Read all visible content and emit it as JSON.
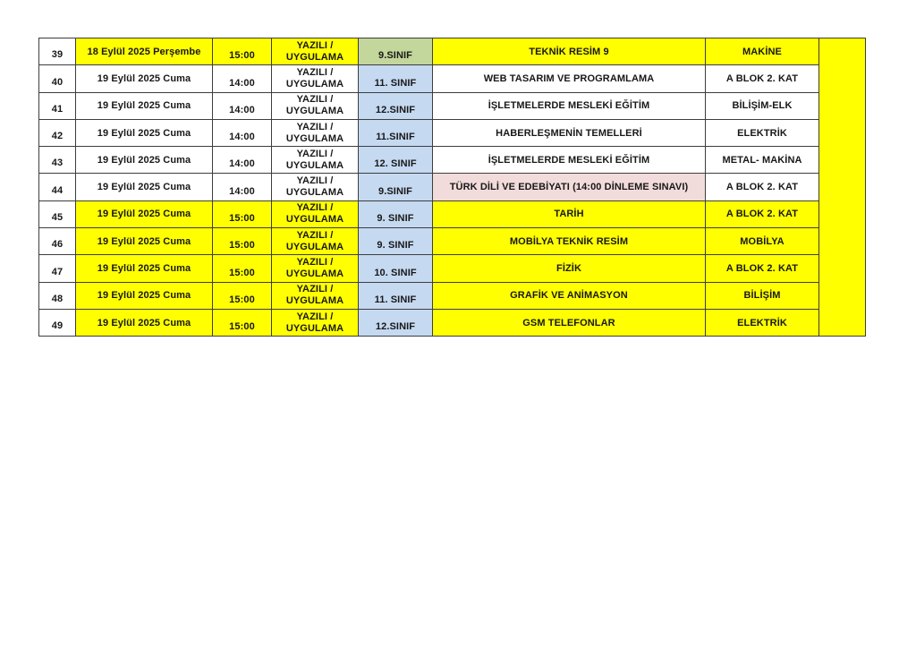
{
  "colors": {
    "row_yellow": "#FFFF00",
    "row_white": "#FFFFFF",
    "class_blue": "#C5D9F1",
    "class_green": "#C3D69B",
    "subject_pink": "#F2DCDB",
    "border": "#3D3D3D",
    "text": "#181818",
    "page_background": "#FFFFFF"
  },
  "table": {
    "description": "exam-schedule-table",
    "columns": [
      "row-number",
      "date",
      "time",
      "exam-type",
      "grade",
      "subject",
      "location",
      "side-strip"
    ],
    "rows": [
      {
        "num": "39",
        "date": "18 Eylül 2025 Perşembe",
        "time": "15:00",
        "type": "YAZILI /\nUYGULAMA",
        "grade": "9.SINIF",
        "subject": "TEKNİK RESİM 9",
        "location": "MAKİNE",
        "row_bg": "yellow",
        "class_bg": "green",
        "subject_bg": "row"
      },
      {
        "num": "40",
        "date": "19 Eylül 2025 Cuma",
        "time": "14:00",
        "type": "YAZILI /\nUYGULAMA",
        "grade": "11. SINIF",
        "subject": "WEB TASARIM VE PROGRAMLAMA",
        "location": "A BLOK 2. KAT",
        "row_bg": "white",
        "class_bg": "blue",
        "subject_bg": "row"
      },
      {
        "num": "41",
        "date": "19 Eylül 2025 Cuma",
        "time": "14:00",
        "type": "YAZILI /\nUYGULAMA",
        "grade": "12.SINIF",
        "subject": "İŞLETMELERDE MESLEKİ EĞİTİM",
        "location": "BİLİŞİM-ELK",
        "row_bg": "white",
        "class_bg": "blue",
        "subject_bg": "row"
      },
      {
        "num": "42",
        "date": "19 Eylül 2025 Cuma",
        "time": "14:00",
        "type": "YAZILI /\nUYGULAMA",
        "grade": "11.SINIF",
        "subject": "HABERLEŞMENİN TEMELLERİ",
        "location": "ELEKTRİK",
        "row_bg": "white",
        "class_bg": "blue",
        "subject_bg": "row"
      },
      {
        "num": "43",
        "date": "19 Eylül 2025 Cuma",
        "time": "14:00",
        "type": "YAZILI /\nUYGULAMA",
        "grade": "12. SINIF",
        "subject": "İŞLETMELERDE MESLEKİ EĞİTİM",
        "location": "METAL- MAKİNA",
        "row_bg": "white",
        "class_bg": "blue",
        "subject_bg": "row"
      },
      {
        "num": "44",
        "date": "19 Eylül 2025 Cuma",
        "time": "14:00",
        "type": "YAZILI /\nUYGULAMA",
        "grade": "9.SINIF",
        "subject": "TÜRK DİLİ VE EDEBİYATI (14:00 DİNLEME SINAVI)",
        "location": "A BLOK 2. KAT",
        "row_bg": "white",
        "class_bg": "blue",
        "subject_bg": "pink"
      },
      {
        "num": "45",
        "date": "19 Eylül 2025 Cuma",
        "time": "15:00",
        "type": "YAZILI /\nUYGULAMA",
        "grade": "9. SINIF",
        "subject": "TARİH",
        "location": "A BLOK 2. KAT",
        "row_bg": "yellow",
        "class_bg": "blue",
        "subject_bg": "row"
      },
      {
        "num": "46",
        "date": "19 Eylül 2025 Cuma",
        "time": "15:00",
        "type": "YAZILI /\nUYGULAMA",
        "grade": "9. SINIF",
        "subject": "MOBİLYA TEKNİK RESİM",
        "location": "MOBİLYA",
        "row_bg": "yellow",
        "class_bg": "blue",
        "subject_bg": "row"
      },
      {
        "num": "47",
        "date": "19 Eylül 2025 Cuma",
        "time": "15:00",
        "type": "YAZILI /\nUYGULAMA",
        "grade": "10. SINIF",
        "subject": "FİZİK",
        "location": "A BLOK 2. KAT",
        "row_bg": "yellow",
        "class_bg": "blue",
        "subject_bg": "row"
      },
      {
        "num": "48",
        "date": "19 Eylül 2025 Cuma",
        "time": "15:00",
        "type": "YAZILI /\nUYGULAMA",
        "grade": "11. SINIF",
        "subject": "GRAFİK VE ANİMASYON",
        "location": "BİLİŞİM",
        "row_bg": "yellow",
        "class_bg": "blue",
        "subject_bg": "row"
      },
      {
        "num": "49",
        "date": "19 Eylül 2025 Cuma",
        "time": "15:00",
        "type": "YAZILI /\nUYGULAMA",
        "grade": "12.SINIF",
        "subject": "GSM TELEFONLAR",
        "location": "ELEKTRİK",
        "row_bg": "yellow",
        "class_bg": "blue",
        "subject_bg": "row"
      }
    ],
    "side_strip_bg": "yellow"
  }
}
